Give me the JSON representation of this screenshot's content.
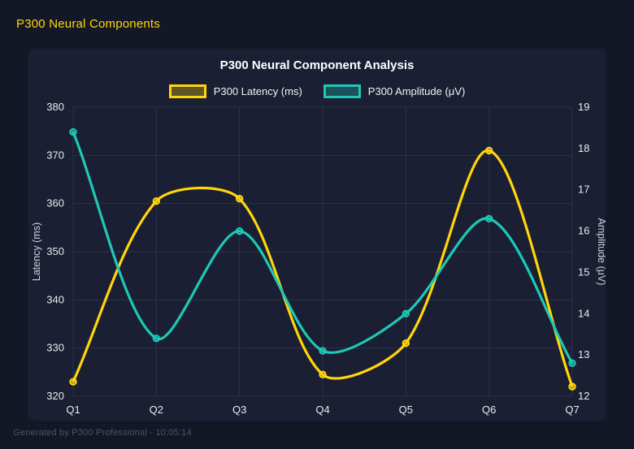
{
  "page": {
    "header_title": "P300 Neural Components",
    "footer_text": "Generated by P300 Professional - 10:05:14"
  },
  "chart_data": {
    "type": "line",
    "title": "P300 Neural Component Analysis",
    "categories": [
      "Q1",
      "Q2",
      "Q3",
      "Q4",
      "Q5",
      "Q6",
      "Q7"
    ],
    "series": [
      {
        "name": "P300 Latency (ms)",
        "axis": "left",
        "color": "#FFD60A",
        "values": [
          323,
          360.5,
          361,
          324.5,
          331,
          371,
          322
        ]
      },
      {
        "name": "P300 Amplitude (μV)",
        "axis": "right",
        "color": "#1EC8B7",
        "values": [
          18.4,
          13.4,
          16,
          13.1,
          14,
          16.3,
          12.8
        ]
      }
    ],
    "y_left": {
      "label": "Latency (ms)",
      "min": 320,
      "max": 380,
      "step": 10
    },
    "y_right": {
      "label": "Amplitude (μV)",
      "min": 12,
      "max": 19,
      "step": 1
    },
    "grid": true,
    "legend_position": "top",
    "line_tension": 0.3
  },
  "theme": {
    "background": "#141826",
    "card_background": "#1B1F33",
    "grid_color": "#2E3249",
    "tick_color": "#E8EAF1",
    "axis_title_color": "#CDD1DD",
    "title_color": "#FFFFFF",
    "header_color": "#FFD60A",
    "footer_color": "#4C5368"
  }
}
